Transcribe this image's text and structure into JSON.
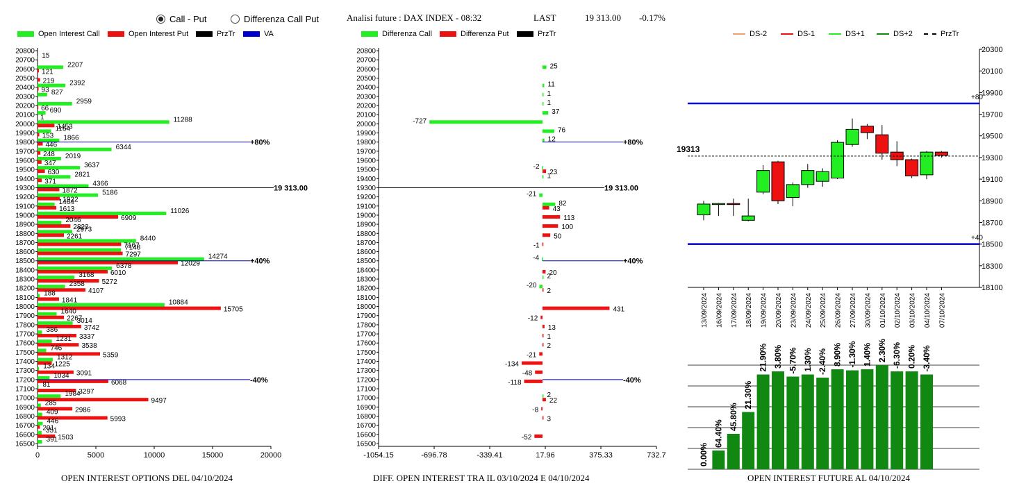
{
  "header": {
    "radio_call_put": "Call - Put",
    "radio_diff": "Differenza Call Put",
    "analysis": "Analisi future : DAX INDEX - 08:32",
    "last_label": "LAST",
    "last_value": "19 313.00",
    "change": "-0.17%"
  },
  "legends": {
    "oi_call": "Open Interest Call",
    "oi_put": "Open Interest Put",
    "prztr": "PrzTr",
    "va": "VA",
    "diff_call": "Differenza Call",
    "diff_put": "Differenza Put",
    "ds_m2": "DS-2",
    "ds_m1": "DS-1",
    "ds_p1": "DS+1",
    "ds_p2": "DS+2"
  },
  "colors": {
    "green": "#22ee22",
    "red": "#ee1111",
    "blue": "#0000cc",
    "dark_green": "#118811",
    "ds_m2": "#f0a070",
    "ds_p2": "#118811"
  },
  "titles": {
    "left": "OPEN INTEREST OPTIONS DEL 04/10/2024",
    "mid": "DIFF. OPEN INTEREST TRA IL 03/10/2024 E 04/10/2024",
    "right": "OPEN INTEREST FUTURE AL 04/10/2024"
  },
  "chart_data": [
    {
      "type": "bar",
      "orientation": "horizontal",
      "categories": [
        "20800",
        "20700",
        "20600",
        "20500",
        "20400",
        "20300",
        "20200",
        "20100",
        "20000",
        "19900",
        "19800",
        "19700",
        "19600",
        "19500",
        "19400",
        "19300",
        "19200",
        "19100",
        "19000",
        "18900",
        "18800",
        "18700",
        "18600",
        "18500",
        "18400",
        "18300",
        "18200",
        "18100",
        "18000",
        "17900",
        "17800",
        "17700",
        "17600",
        "17500",
        "17400",
        "17300",
        "17200",
        "17100",
        "17000",
        "16900",
        "16800",
        "16700",
        "16600",
        "16500"
      ],
      "series": [
        {
          "name": "Open Interest Call",
          "values": [
            0,
            15,
            2207,
            0,
            2392,
            827,
            2959,
            690,
            11288,
            1164,
            1866,
            6344,
            2019,
            3637,
            2821,
            4366,
            5186,
            1464,
            11026,
            2046,
            2973,
            8440,
            7148,
            14274,
            6378,
            3168,
            2358,
            188,
            10884,
            1640,
            3014,
            386,
            1231,
            746,
            1312,
            134,
            1034,
            81,
            1984,
            285,
            409,
            446,
            351,
            391
          ]
        },
        {
          "name": "Open Interest Put",
          "values": [
            0,
            0,
            121,
            219,
            93,
            0,
            66,
            1,
            1453,
            153,
            446,
            248,
            347,
            630,
            371,
            1872,
            1922,
            1613,
            6909,
            2822,
            2261,
            7167,
            7297,
            12029,
            6010,
            5272,
            4107,
            1841,
            15705,
            2267,
            3742,
            3337,
            3538,
            5359,
            1225,
            3091,
            6068,
            3297,
            9497,
            2986,
            5993,
            201,
            1503,
            0
          ]
        }
      ],
      "xlim": [
        0,
        20000
      ],
      "xticks": [
        "0",
        "5000",
        "10000",
        "15000",
        "20000"
      ],
      "price_line": {
        "value": "19300",
        "label": "19 313.00"
      },
      "lines": [
        {
          "level": "19800",
          "label": "+80%"
        },
        {
          "level": "18500",
          "label": "+40%"
        },
        {
          "level": "17200",
          "label": "-40%"
        }
      ],
      "title": "OPEN INTEREST OPTIONS DEL 04/10/2024"
    },
    {
      "type": "bar",
      "orientation": "horizontal",
      "categories": [
        "20800",
        "20700",
        "20600",
        "20500",
        "20400",
        "20300",
        "20200",
        "20100",
        "20000",
        "19900",
        "19800",
        "19700",
        "19600",
        "19500",
        "19400",
        "19300",
        "19200",
        "19100",
        "19000",
        "18900",
        "18800",
        "18700",
        "18600",
        "18500",
        "18400",
        "18300",
        "18200",
        "18100",
        "18000",
        "17900",
        "17800",
        "17700",
        "17600",
        "17500",
        "17400",
        "17300",
        "17200",
        "17100",
        "17000",
        "16900",
        "16800",
        "16700",
        "16600",
        "16500"
      ],
      "series": [
        {
          "name": "Differenza Call",
          "values": [
            null,
            null,
            25,
            null,
            11,
            1,
            1,
            37,
            -727,
            76,
            12,
            null,
            null,
            -2,
            1,
            null,
            -21,
            82,
            null,
            null,
            null,
            null,
            null,
            -4,
            null,
            2,
            -20,
            null,
            null,
            null,
            null,
            null,
            null,
            null,
            null,
            null,
            null,
            null,
            2,
            null,
            null,
            null,
            null,
            null
          ]
        },
        {
          "name": "Differenza Put",
          "values": [
            null,
            null,
            null,
            null,
            null,
            null,
            null,
            null,
            null,
            null,
            null,
            null,
            null,
            23,
            null,
            null,
            null,
            43,
            113,
            100,
            50,
            -1,
            null,
            null,
            20,
            null,
            2,
            null,
            431,
            -12,
            13,
            1,
            2,
            -21,
            -134,
            -48,
            -118,
            null,
            22,
            -8,
            3,
            null,
            -52,
            null
          ]
        }
      ],
      "xlim": [
        -1054.15,
        732.7
      ],
      "xticks": [
        "-1054.15",
        "-696.78",
        "-339.41",
        "17.96",
        "375.33",
        "732.7"
      ],
      "price_line": {
        "value": "19300",
        "label": "19 313.00"
      },
      "lines": [
        {
          "level": "19800",
          "label": "+80%"
        },
        {
          "level": "18500",
          "label": "+40%"
        },
        {
          "level": "17200",
          "label": "-40%"
        }
      ],
      "title": "DIFF. OPEN INTEREST TRA IL 03/10/2024 E 04/10/2024"
    },
    {
      "type": "candlestick",
      "dates": [
        "13/09/2024",
        "16/09/2024",
        "17/09/2024",
        "18/09/2024",
        "19/09/2024",
        "20/09/2024",
        "23/09/2024",
        "24/09/2024",
        "25/09/2024",
        "26/09/2024",
        "27/09/2024",
        "30/09/2024",
        "01/10/2024",
        "02/10/2024",
        "03/10/2024",
        "04/10/2024",
        "07/10/2024"
      ],
      "open": [
        18770,
        18870,
        18875,
        18720,
        18980,
        19260,
        18930,
        19050,
        19080,
        19110,
        19420,
        19590,
        19510,
        19350,
        19280,
        19140,
        19350
      ],
      "close": [
        18870,
        18875,
        18870,
        18760,
        19180,
        18900,
        19050,
        19180,
        19170,
        19440,
        19560,
        19530,
        19340,
        19280,
        19130,
        19350,
        19320
      ],
      "high": [
        18900,
        18880,
        18920,
        18920,
        19230,
        19270,
        19070,
        19240,
        19200,
        19460,
        19660,
        19610,
        19600,
        19450,
        19290,
        19360,
        19360
      ],
      "low": [
        18720,
        18760,
        18760,
        18710,
        18960,
        18870,
        18850,
        19020,
        19030,
        19100,
        19400,
        19470,
        19280,
        19220,
        19110,
        19100,
        19300
      ],
      "ylim": [
        18100,
        20300
      ],
      "yticks": [
        "18100",
        "18300",
        "18500",
        "18700",
        "18900",
        "19100",
        "19300",
        "19500",
        "19700",
        "19900",
        "20100",
        "20300"
      ],
      "current_price": "19313",
      "levels": [
        {
          "value": 19800,
          "label": "+80"
        },
        {
          "value": 18500,
          "label": "+40"
        }
      ]
    },
    {
      "type": "bar",
      "categories": [
        "13/09/2024",
        "16/09/2024",
        "17/09/2024",
        "18/09/2024",
        "19/09/2024",
        "20/09/2024",
        "23/09/2024",
        "24/09/2024",
        "25/09/2024",
        "26/09/2024",
        "27/09/2024",
        "30/09/2024",
        "01/10/2024",
        "02/10/2024",
        "03/10/2024",
        "04/10/2024",
        "07/10/2024"
      ],
      "values": [
        0,
        18,
        34,
        55,
        91,
        94,
        89,
        91,
        88,
        96,
        95,
        96,
        100,
        94,
        94,
        91,
        null
      ],
      "labels": [
        "0.00%",
        "64.40%",
        "45.80%",
        "21.30%",
        "21.90%",
        "3.80%",
        "-5.70%",
        "1.30%",
        "-2.40%",
        "8.90%",
        "-1.30%",
        "1.40%",
        "2.30%",
        "-6.30%",
        "0.20%",
        "-3.40%",
        ""
      ],
      "title": "OPEN INTEREST FUTURE AL 04/10/2024"
    }
  ]
}
